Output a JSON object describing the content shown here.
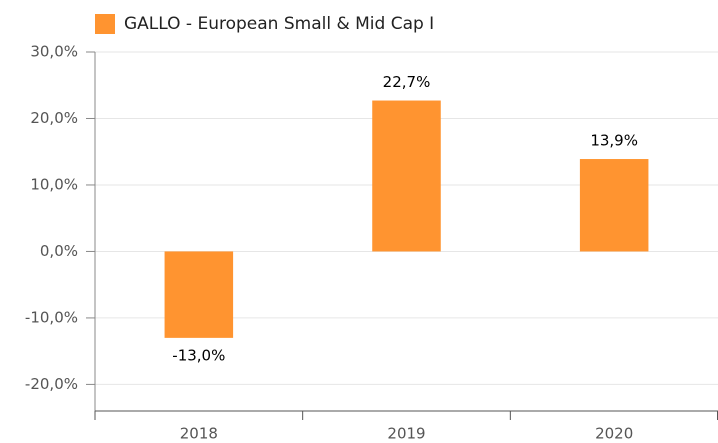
{
  "chart_data": {
    "type": "bar",
    "categories": [
      "2018",
      "2019",
      "2020"
    ],
    "series": [
      {
        "name": "GALLO - European Small & Mid Cap I",
        "color": "#ff9430",
        "values": [
          -13.0,
          22.7,
          13.9
        ],
        "value_labels": [
          "-13,0%",
          "22,7%",
          "13,9%"
        ]
      }
    ],
    "ylim": [
      -24,
      30
    ],
    "yticks": [
      {
        "value": -20,
        "label": "-20,0%"
      },
      {
        "value": -10,
        "label": "-10,0%"
      },
      {
        "value": 0,
        "label": "0,0%"
      },
      {
        "value": 10,
        "label": "10,0%"
      },
      {
        "value": 20,
        "label": "20,0%"
      },
      {
        "value": 30,
        "label": "30,0%"
      }
    ],
    "grid": true,
    "legend": "top-left"
  }
}
